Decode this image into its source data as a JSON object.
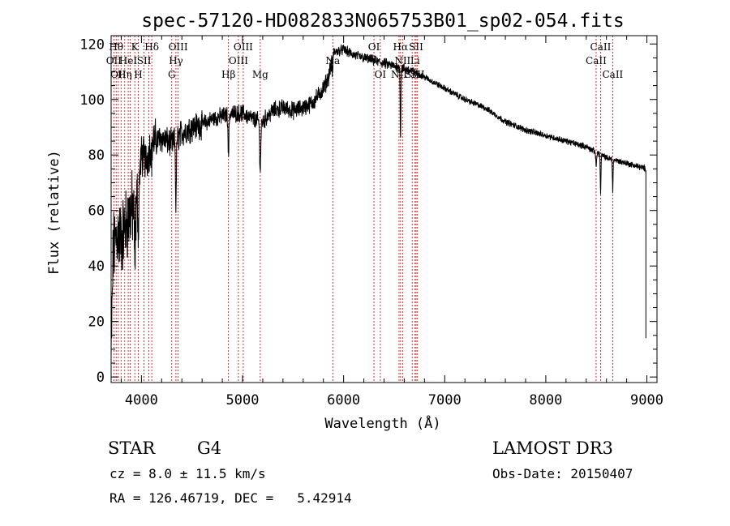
{
  "chart_data": {
    "type": "line",
    "title": "spec-57120-HD082833N065753B01_sp02-054.fits",
    "xlabel": "Wavelength (Å)",
    "ylabel": "Flux (relative)",
    "xlim": [
      3700,
      9100
    ],
    "ylim": [
      -2,
      123
    ],
    "xticks": [
      4000,
      5000,
      6000,
      7000,
      8000,
      9000
    ],
    "yticks": [
      0,
      20,
      40,
      60,
      80,
      100,
      120
    ],
    "grid": false,
    "line_color": "#000000",
    "marker_color": "#cc0000",
    "spectrum_anchors": [
      {
        "x": 3700,
        "y": 5
      },
      {
        "x": 3720,
        "y": 45
      },
      {
        "x": 3760,
        "y": 52
      },
      {
        "x": 3800,
        "y": 50
      },
      {
        "x": 3850,
        "y": 55
      },
      {
        "x": 3900,
        "y": 60
      },
      {
        "x": 3950,
        "y": 62
      },
      {
        "x": 4000,
        "y": 80
      },
      {
        "x": 4050,
        "y": 78
      },
      {
        "x": 4100,
        "y": 85
      },
      {
        "x": 4200,
        "y": 86
      },
      {
        "x": 4300,
        "y": 84
      },
      {
        "x": 4400,
        "y": 88
      },
      {
        "x": 4500,
        "y": 90
      },
      {
        "x": 4600,
        "y": 91
      },
      {
        "x": 4700,
        "y": 93
      },
      {
        "x": 4800,
        "y": 94
      },
      {
        "x": 4900,
        "y": 95
      },
      {
        "x": 5000,
        "y": 95
      },
      {
        "x": 5100,
        "y": 93
      },
      {
        "x": 5200,
        "y": 92
      },
      {
        "x": 5300,
        "y": 96
      },
      {
        "x": 5400,
        "y": 97
      },
      {
        "x": 5500,
        "y": 96
      },
      {
        "x": 5600,
        "y": 97
      },
      {
        "x": 5700,
        "y": 99
      },
      {
        "x": 5800,
        "y": 104
      },
      {
        "x": 5850,
        "y": 108
      },
      {
        "x": 5900,
        "y": 117
      },
      {
        "x": 6000,
        "y": 118
      },
      {
        "x": 6100,
        "y": 116
      },
      {
        "x": 6200,
        "y": 115
      },
      {
        "x": 6300,
        "y": 114
      },
      {
        "x": 6400,
        "y": 113
      },
      {
        "x": 6500,
        "y": 112
      },
      {
        "x": 6600,
        "y": 111
      },
      {
        "x": 6700,
        "y": 110
      },
      {
        "x": 6800,
        "y": 108
      },
      {
        "x": 7000,
        "y": 104
      },
      {
        "x": 7200,
        "y": 100
      },
      {
        "x": 7400,
        "y": 97
      },
      {
        "x": 7600,
        "y": 92
      },
      {
        "x": 7800,
        "y": 89
      },
      {
        "x": 8000,
        "y": 87
      },
      {
        "x": 8200,
        "y": 85
      },
      {
        "x": 8400,
        "y": 83
      },
      {
        "x": 8500,
        "y": 81
      },
      {
        "x": 8600,
        "y": 79
      },
      {
        "x": 8700,
        "y": 78
      },
      {
        "x": 8800,
        "y": 77
      },
      {
        "x": 8900,
        "y": 76
      },
      {
        "x": 8990,
        "y": 75
      }
    ],
    "absorption_features": [
      {
        "x": 3934,
        "depth": 18,
        "width": 8
      },
      {
        "x": 3969,
        "depth": 16,
        "width": 8
      },
      {
        "x": 4102,
        "depth": 6,
        "width": 6
      },
      {
        "x": 4341,
        "depth": 25,
        "width": 6
      },
      {
        "x": 4861,
        "depth": 15,
        "width": 6
      },
      {
        "x": 5175,
        "depth": 17,
        "width": 8
      },
      {
        "x": 5890,
        "depth": 6,
        "width": 6
      },
      {
        "x": 6563,
        "depth": 25,
        "width": 5
      },
      {
        "x": 8498,
        "depth": 5,
        "width": 6
      },
      {
        "x": 8542,
        "depth": 14,
        "width": 5
      },
      {
        "x": 8662,
        "depth": 11,
        "width": 5
      }
    ],
    "line_markers": [
      {
        "x": 3727,
        "label": "OII",
        "row": 2
      },
      {
        "x": 3750,
        "label": "Hθ",
        "row": 1
      },
      {
        "x": 3771,
        "label": "OII",
        "row": 3
      },
      {
        "x": 3798,
        "label": "",
        "row": 0
      },
      {
        "x": 3835,
        "label": "Hη",
        "row": 3
      },
      {
        "x": 3869,
        "label": "HeI",
        "row": 2
      },
      {
        "x": 3889,
        "label": "",
        "row": 0
      },
      {
        "x": 3934,
        "label": "K",
        "row": 1
      },
      {
        "x": 3969,
        "label": "H",
        "row": 3
      },
      {
        "x": 4026,
        "label": "SII",
        "row": 2
      },
      {
        "x": 4072,
        "label": "",
        "row": 0
      },
      {
        "x": 4102,
        "label": "Hδ",
        "row": 1
      },
      {
        "x": 4300,
        "label": "G",
        "row": 3
      },
      {
        "x": 4341,
        "label": "Hγ",
        "row": 2
      },
      {
        "x": 4363,
        "label": "OIII",
        "row": 1
      },
      {
        "x": 4861,
        "label": "Hβ",
        "row": 3
      },
      {
        "x": 4959,
        "label": "OIII",
        "row": 2
      },
      {
        "x": 5007,
        "label": "OIII",
        "row": 1
      },
      {
        "x": 5175,
        "label": "Mg",
        "row": 3
      },
      {
        "x": 5893,
        "label": "Na",
        "row": 2
      },
      {
        "x": 6300,
        "label": "OI",
        "row": 1
      },
      {
        "x": 6363,
        "label": "OI",
        "row": 3
      },
      {
        "x": 6548,
        "label": "NII",
        "row": 3
      },
      {
        "x": 6563,
        "label": "Hα",
        "row": 1
      },
      {
        "x": 6583,
        "label": "NII",
        "row": 2
      },
      {
        "x": 6678,
        "label": "SII",
        "row": 3
      },
      {
        "x": 6707,
        "label": "Li",
        "row": 2
      },
      {
        "x": 6717,
        "label": "SII",
        "row": 1
      },
      {
        "x": 6731,
        "label": "SII",
        "row": 3
      },
      {
        "x": 8498,
        "label": "CaII",
        "row": 2
      },
      {
        "x": 8542,
        "label": "CaII",
        "row": 1
      },
      {
        "x": 8662,
        "label": "CaII",
        "row": 3
      }
    ]
  },
  "info": {
    "object_class": "STAR",
    "subclass": "G4",
    "survey": "LAMOST DR3",
    "redshift": "cz = 8.0 ± 11.5 km/s",
    "obs_date": "Obs-Date: 20150407",
    "coordinates": "RA = 126.46719, DEC =   5.42914"
  }
}
